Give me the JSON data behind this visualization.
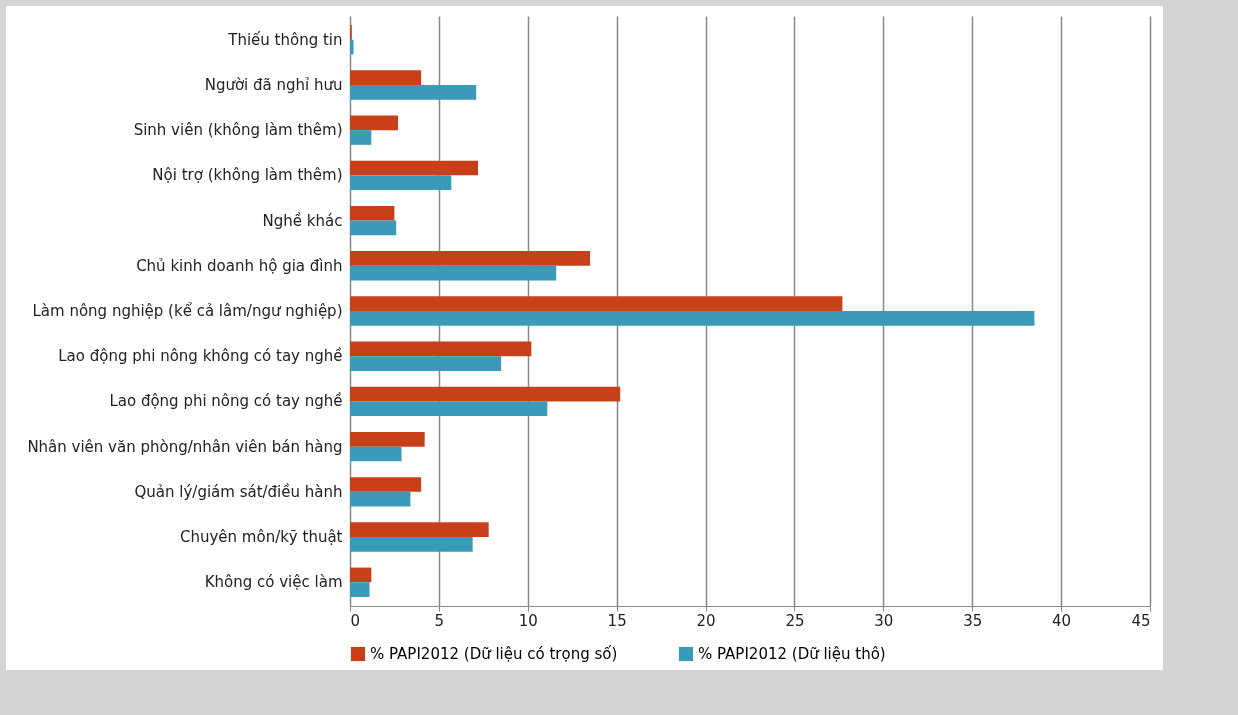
{
  "chart_data": {
    "type": "bar",
    "orientation": "horizontal",
    "categories": [
      "Thiếu thông tin",
      "Người đã nghỉ hưu",
      "Sinh viên (không làm thêm)",
      "Nội trợ (không làm thêm)",
      "Nghề khác",
      "Chủ kinh doanh hộ gia đình",
      "Làm nông nghiệp (kể cả lâm/ngư nghiệp)",
      "Lao động phi nông không có tay nghề",
      "Lao động phi nông có tay nghề",
      "Nhân viên văn phòng/nhân viên bán hàng",
      "Quản lý/giám sát/điều hành",
      "Chuyên môn/kỹ thuật",
      "Không có việc làm"
    ],
    "series": [
      {
        "name": "% PAPI2012 (Dữ liệu có trọng số)",
        "color": "#c8401a",
        "values": [
          0.1,
          4.0,
          2.7,
          7.2,
          2.5,
          13.5,
          27.7,
          10.2,
          15.2,
          4.2,
          4.0,
          7.8,
          1.2
        ]
      },
      {
        "name": "% PAPI2012 (Dữ liệu thô)",
        "color": "#3a9ab8",
        "values": [
          0.2,
          7.1,
          1.2,
          5.7,
          2.6,
          11.6,
          38.5,
          8.5,
          11.1,
          2.9,
          3.4,
          6.9,
          1.1
        ]
      }
    ],
    "xlim": [
      0,
      45
    ],
    "xticks": [
      0,
      5,
      10,
      15,
      20,
      25,
      30,
      35,
      40,
      45
    ],
    "grid": "x",
    "legend": "bottom"
  }
}
